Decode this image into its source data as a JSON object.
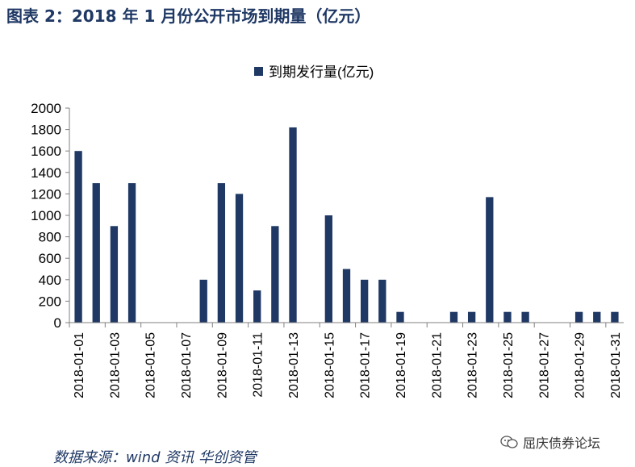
{
  "header": {
    "title": "图表 2：2018 年 1 月份公开市场到期量（亿元）"
  },
  "footer": {
    "source": "数据来源：wind 资讯  华创资管",
    "watermark": "屈庆债券论坛"
  },
  "colors": {
    "bar": "#1f3864",
    "axis": "#808080",
    "text": "#000000"
  },
  "chart_data": {
    "type": "bar",
    "title": "",
    "legend": {
      "label": "到期发行量(亿元)",
      "position": "top-center"
    },
    "xlabel": "",
    "ylabel": "",
    "ylim": [
      0,
      2000
    ],
    "yticks": [
      0,
      200,
      400,
      600,
      800,
      1000,
      1200,
      1400,
      1600,
      1800,
      2000
    ],
    "grid": false,
    "categories": [
      "2018-01-01",
      "2018-01-02",
      "2018-01-03",
      "2018-01-04",
      "2018-01-05",
      "2018-01-06",
      "2018-01-07",
      "2018-01-08",
      "2018-01-09",
      "2018-01-10",
      "2018-01-11",
      "2018-01-12",
      "2018-01-13",
      "2018-01-14",
      "2018-01-15",
      "2018-01-16",
      "2018-01-17",
      "2018-01-18",
      "2018-01-19",
      "2018-01-20",
      "2018-01-21",
      "2018-01-22",
      "2018-01-23",
      "2018-01-24",
      "2018-01-25",
      "2018-01-26",
      "2018-01-27",
      "2018-01-28",
      "2018-01-29",
      "2018-01-30",
      "2018-01-31"
    ],
    "values": [
      1600,
      1300,
      900,
      1300,
      0,
      0,
      0,
      400,
      1300,
      1200,
      300,
      900,
      1820,
      0,
      1000,
      500,
      400,
      400,
      100,
      0,
      0,
      100,
      100,
      1170,
      100,
      100,
      0,
      0,
      100,
      100,
      100
    ],
    "xtick_labels": [
      "2018-01-01",
      "2018-01-03",
      "2018-01-05",
      "2018-01-07",
      "2018-01-09",
      "2018-01-11",
      "2018-01-13",
      "2018-01-15",
      "2018-01-17",
      "2018-01-19",
      "2018-01-21",
      "2018-01-23",
      "2018-01-25",
      "2018-01-27",
      "2018-01-29",
      "2018-01-31"
    ]
  }
}
